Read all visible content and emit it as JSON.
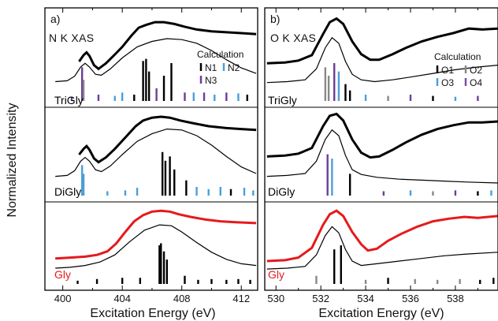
{
  "ylabel": "Normalized Intensity",
  "colors": {
    "exp": "#000000",
    "gly": "#e41a1c",
    "c1": "#000000",
    "c2": "#4a9fd8",
    "c3": "#6a3d9a",
    "c4": "#7a4ea5",
    "gray": "#888888"
  },
  "chart_data": [
    {
      "type": "line",
      "panel": "a)",
      "title": "N K XAS",
      "xlabel": "Excitation Energy (eV)",
      "xlim": [
        398.8,
        413.1
      ],
      "xticks": [
        400,
        404,
        408,
        412
      ],
      "xminor": [
        402,
        406,
        410
      ],
      "legend": {
        "title": "Calculation",
        "placement": "top-right",
        "entries": [
          "N1",
          "N2",
          "N3"
        ]
      },
      "rows": [
        {
          "label": "TriGly",
          "label_color": "#000000",
          "exp": [
            [
              401.1,
              0.5
            ],
            [
              401.4,
              0.57
            ],
            [
              401.6,
              0.6
            ],
            [
              401.8,
              0.56
            ],
            [
              402.1,
              0.46
            ],
            [
              402.4,
              0.42
            ],
            [
              402.9,
              0.48
            ],
            [
              403.4,
              0.56
            ],
            [
              404.0,
              0.66
            ],
            [
              404.6,
              0.78
            ],
            [
              405.1,
              0.87
            ],
            [
              405.6,
              0.9
            ],
            [
              406.2,
              0.93
            ],
            [
              406.8,
              0.93
            ],
            [
              407.5,
              0.91
            ],
            [
              408.2,
              0.88
            ],
            [
              409.0,
              0.85
            ],
            [
              410.0,
              0.83
            ],
            [
              411.0,
              0.82
            ],
            [
              412.0,
              0.81
            ],
            [
              413.0,
              0.8
            ]
          ],
          "calc": [
            [
              399.5,
              0.28
            ],
            [
              400.3,
              0.29
            ],
            [
              400.8,
              0.34
            ],
            [
              401.2,
              0.44
            ],
            [
              401.5,
              0.48
            ],
            [
              401.8,
              0.44
            ],
            [
              402.2,
              0.36
            ],
            [
              402.6,
              0.35
            ],
            [
              403.2,
              0.42
            ],
            [
              404.0,
              0.54
            ],
            [
              405.0,
              0.66
            ],
            [
              406.0,
              0.72
            ],
            [
              407.0,
              0.75
            ],
            [
              408.0,
              0.74
            ],
            [
              409.0,
              0.7
            ],
            [
              410.0,
              0.62
            ],
            [
              411.0,
              0.52
            ],
            [
              412.0,
              0.43
            ],
            [
              413.0,
              0.37
            ]
          ]
        },
        {
          "label": "DiGly",
          "label_color": "#000000",
          "exp": [
            [
              401.1,
              0.5
            ],
            [
              401.4,
              0.56
            ],
            [
              401.6,
              0.59
            ],
            [
              401.8,
              0.55
            ],
            [
              402.1,
              0.46
            ],
            [
              402.4,
              0.42
            ],
            [
              402.9,
              0.47
            ],
            [
              403.5,
              0.56
            ],
            [
              404.2,
              0.68
            ],
            [
              404.9,
              0.8
            ],
            [
              405.4,
              0.86
            ],
            [
              406.0,
              0.89
            ],
            [
              406.6,
              0.9
            ],
            [
              407.2,
              0.89
            ],
            [
              407.9,
              0.86
            ],
            [
              408.8,
              0.83
            ],
            [
              409.8,
              0.8
            ],
            [
              411.0,
              0.78
            ],
            [
              412.0,
              0.77
            ],
            [
              413.0,
              0.76
            ]
          ],
          "calc": [
            [
              399.5,
              0.27
            ],
            [
              400.3,
              0.28
            ],
            [
              400.8,
              0.33
            ],
            [
              401.2,
              0.43
            ],
            [
              401.5,
              0.47
            ],
            [
              401.8,
              0.43
            ],
            [
              402.2,
              0.34
            ],
            [
              402.6,
              0.32
            ],
            [
              403.2,
              0.38
            ],
            [
              404.0,
              0.5
            ],
            [
              405.0,
              0.64
            ],
            [
              406.0,
              0.72
            ],
            [
              407.0,
              0.77
            ],
            [
              408.0,
              0.76
            ],
            [
              409.0,
              0.7
            ],
            [
              410.0,
              0.6
            ],
            [
              411.0,
              0.48
            ],
            [
              412.0,
              0.37
            ],
            [
              413.0,
              0.3
            ]
          ]
        },
        {
          "label": "Gly",
          "label_color": "#e41a1c",
          "exp": [
            [
              399.5,
              0.36
            ],
            [
              400.5,
              0.37
            ],
            [
              401.5,
              0.38
            ],
            [
              402.3,
              0.4
            ],
            [
              403.0,
              0.44
            ],
            [
              403.6,
              0.53
            ],
            [
              404.2,
              0.66
            ],
            [
              404.8,
              0.78
            ],
            [
              405.4,
              0.85
            ],
            [
              406.0,
              0.89
            ],
            [
              406.6,
              0.9
            ],
            [
              407.2,
              0.89
            ],
            [
              407.8,
              0.86
            ],
            [
              408.6,
              0.83
            ],
            [
              409.6,
              0.8
            ],
            [
              410.6,
              0.78
            ],
            [
              411.6,
              0.77
            ],
            [
              413.0,
              0.76
            ]
          ],
          "calc": [
            [
              399.5,
              0.25
            ],
            [
              400.5,
              0.26
            ],
            [
              401.5,
              0.28
            ],
            [
              402.5,
              0.32
            ],
            [
              403.5,
              0.4
            ],
            [
              404.5,
              0.55
            ],
            [
              405.5,
              0.68
            ],
            [
              406.5,
              0.74
            ],
            [
              407.3,
              0.73
            ],
            [
              408.0,
              0.66
            ],
            [
              409.0,
              0.54
            ],
            [
              410.0,
              0.43
            ],
            [
              411.0,
              0.35
            ],
            [
              412.0,
              0.3
            ],
            [
              413.0,
              0.28
            ]
          ]
        }
      ]
    },
    {
      "type": "line",
      "panel": "b)",
      "title": "O K XAS",
      "xlabel": "Excitation Energy (eV)",
      "xlim": [
        529.5,
        539.9
      ],
      "xticks": [
        530,
        532,
        534,
        536,
        538
      ],
      "xminor": [
        531,
        533,
        535,
        537,
        539
      ],
      "legend": {
        "title": "Calculation",
        "placement": "top-right",
        "entries": [
          "O1",
          "O2",
          "O3",
          "O4"
        ]
      },
      "rows": [
        {
          "label": "TriGly",
          "label_color": "#000000",
          "exp": [
            [
              529.6,
              0.48
            ],
            [
              530.4,
              0.49
            ],
            [
              531.0,
              0.51
            ],
            [
              531.6,
              0.57
            ],
            [
              532.1,
              0.8
            ],
            [
              532.4,
              0.93
            ],
            [
              532.7,
              0.97
            ],
            [
              533.0,
              0.91
            ],
            [
              533.4,
              0.72
            ],
            [
              533.8,
              0.58
            ],
            [
              534.2,
              0.52
            ],
            [
              534.6,
              0.52
            ],
            [
              535.2,
              0.58
            ],
            [
              535.8,
              0.65
            ],
            [
              536.5,
              0.72
            ],
            [
              537.2,
              0.77
            ],
            [
              537.9,
              0.81
            ],
            [
              538.6,
              0.86
            ],
            [
              539.2,
              0.85
            ],
            [
              539.9,
              0.86
            ]
          ],
          "calc": [
            [
              529.6,
              0.27
            ],
            [
              530.5,
              0.28
            ],
            [
              531.3,
              0.3
            ],
            [
              531.8,
              0.42
            ],
            [
              532.2,
              0.65
            ],
            [
              532.5,
              0.76
            ],
            [
              532.8,
              0.7
            ],
            [
              533.1,
              0.5
            ],
            [
              533.4,
              0.36
            ],
            [
              533.8,
              0.3
            ],
            [
              534.4,
              0.28
            ],
            [
              535.2,
              0.3
            ],
            [
              536.0,
              0.33
            ],
            [
              537.0,
              0.37
            ],
            [
              538.0,
              0.41
            ],
            [
              539.0,
              0.44
            ],
            [
              539.9,
              0.46
            ]
          ]
        },
        {
          "label": "DiGly",
          "label_color": "#000000",
          "exp": [
            [
              529.6,
              0.48
            ],
            [
              530.4,
              0.49
            ],
            [
              531.0,
              0.51
            ],
            [
              531.6,
              0.57
            ],
            [
              532.1,
              0.8
            ],
            [
              532.4,
              0.91
            ],
            [
              532.7,
              0.93
            ],
            [
              533.0,
              0.86
            ],
            [
              533.4,
              0.66
            ],
            [
              533.8,
              0.52
            ],
            [
              534.2,
              0.47
            ],
            [
              534.6,
              0.48
            ],
            [
              535.2,
              0.55
            ],
            [
              535.8,
              0.63
            ],
            [
              536.5,
              0.71
            ],
            [
              537.2,
              0.77
            ],
            [
              537.9,
              0.81
            ],
            [
              538.6,
              0.84
            ],
            [
              539.2,
              0.84
            ],
            [
              539.9,
              0.85
            ]
          ],
          "calc": [
            [
              529.6,
              0.27
            ],
            [
              530.5,
              0.28
            ],
            [
              531.3,
              0.3
            ],
            [
              531.8,
              0.43
            ],
            [
              532.2,
              0.66
            ],
            [
              532.5,
              0.76
            ],
            [
              532.8,
              0.7
            ],
            [
              533.1,
              0.49
            ],
            [
              533.4,
              0.34
            ],
            [
              533.8,
              0.29
            ],
            [
              534.5,
              0.26
            ],
            [
              535.5,
              0.24
            ],
            [
              536.5,
              0.23
            ],
            [
              537.5,
              0.22
            ],
            [
              538.5,
              0.21
            ],
            [
              539.9,
              0.2
            ]
          ]
        },
        {
          "label": "Gly",
          "label_color": "#e41a1c",
          "exp": [
            [
              529.6,
              0.33
            ],
            [
              530.4,
              0.34
            ],
            [
              531.0,
              0.37
            ],
            [
              531.6,
              0.48
            ],
            [
              532.1,
              0.74
            ],
            [
              532.4,
              0.86
            ],
            [
              532.7,
              0.9
            ],
            [
              533.0,
              0.84
            ],
            [
              533.4,
              0.66
            ],
            [
              533.8,
              0.52
            ],
            [
              534.1,
              0.45
            ],
            [
              534.5,
              0.47
            ],
            [
              535.0,
              0.56
            ],
            [
              535.6,
              0.64
            ],
            [
              536.3,
              0.72
            ],
            [
              537.0,
              0.78
            ],
            [
              537.7,
              0.81
            ],
            [
              538.4,
              0.83
            ],
            [
              539.0,
              0.82
            ],
            [
              539.9,
              0.84
            ]
          ],
          "calc": [
            [
              529.6,
              0.24
            ],
            [
              530.5,
              0.25
            ],
            [
              531.3,
              0.27
            ],
            [
              531.8,
              0.4
            ],
            [
              532.2,
              0.62
            ],
            [
              532.5,
              0.72
            ],
            [
              532.8,
              0.65
            ],
            [
              533.1,
              0.46
            ],
            [
              533.4,
              0.33
            ],
            [
              533.8,
              0.28
            ],
            [
              534.5,
              0.3
            ],
            [
              535.5,
              0.33
            ],
            [
              536.5,
              0.36
            ],
            [
              537.5,
              0.39
            ],
            [
              538.5,
              0.41
            ],
            [
              539.9,
              0.43
            ]
          ]
        }
      ]
    }
  ]
}
